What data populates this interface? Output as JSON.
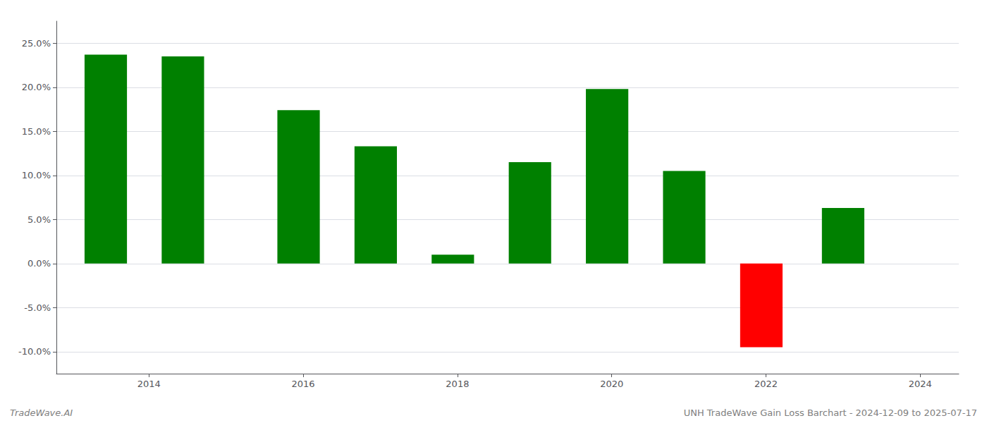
{
  "chart_data": {
    "type": "bar",
    "x": [
      2013.44,
      2014.44,
      2015.94,
      2016.94,
      2017.94,
      2018.94,
      2019.94,
      2020.94,
      2021.94,
      2023.0
    ],
    "values": [
      0.237,
      0.235,
      0.174,
      0.133,
      0.01,
      0.115,
      0.198,
      0.105,
      -0.095,
      0.063
    ],
    "colors": [
      "#008000",
      "#008000",
      "#008000",
      "#008000",
      "#008000",
      "#008000",
      "#008000",
      "#008000",
      "#ff0000",
      "#008000"
    ],
    "xlim": [
      2012.8,
      2024.5
    ],
    "xticks": [
      2014,
      2016,
      2018,
      2020,
      2022,
      2024
    ],
    "ylim": [
      -0.125,
      0.275
    ],
    "yticks": [
      {
        "value": -0.1,
        "label": "-10.0%"
      },
      {
        "value": -0.05,
        "label": "-5.0%"
      },
      {
        "value": 0.0,
        "label": "0.0%"
      },
      {
        "value": 0.05,
        "label": "5.0%"
      },
      {
        "value": 0.1,
        "label": "10.0%"
      },
      {
        "value": 0.15,
        "label": "15.0%"
      },
      {
        "value": 0.2,
        "label": "20.0%"
      },
      {
        "value": 0.25,
        "label": "25.0%"
      }
    ],
    "grid": true,
    "annotations": [
      "TradeWave.AI",
      "UNH TradeWave Gain Loss Barchart - 2024-12-09 to 2025-07-17"
    ]
  }
}
